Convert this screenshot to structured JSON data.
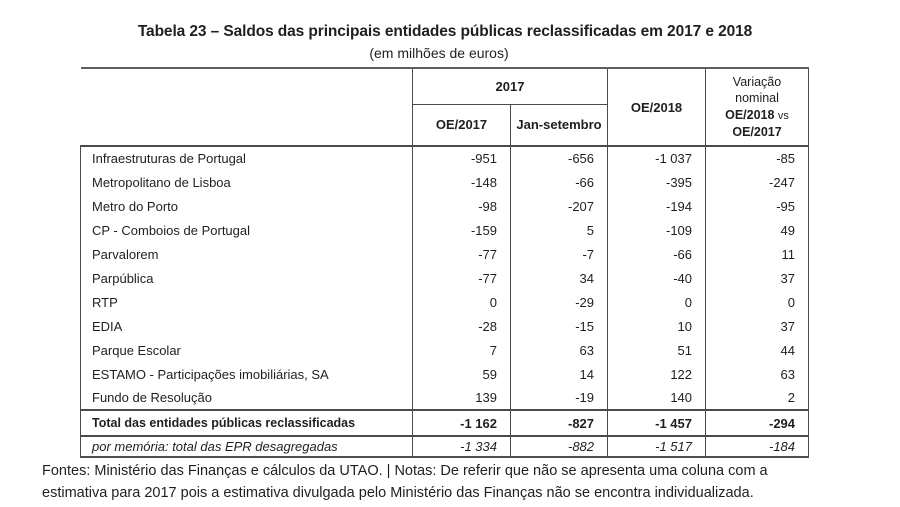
{
  "title": "Tabela 23 – Saldos das principais entidades públicas reclassificadas em 2017 e 2018",
  "subtitle": "(em milhões de euros)",
  "table": {
    "header": {
      "group_2017": "2017",
      "col_oe2017": "OE/2017",
      "col_jan_set": "Jan-setembro",
      "col_oe2018": "OE/2018",
      "variacao_line1": "Variação",
      "variacao_line2": "nominal",
      "variacao_line3_bold": "OE/2018",
      "variacao_line3_suffix": "vs",
      "variacao_line4": "OE/2017"
    },
    "rows": [
      {
        "name": "Infraestruturas de Portugal",
        "oe2017": "-951",
        "jan_set": "-656",
        "oe2018": "-1 037",
        "variacao": "-85"
      },
      {
        "name": "Metropolitano de Lisboa",
        "oe2017": "-148",
        "jan_set": "-66",
        "oe2018": "-395",
        "variacao": "-247"
      },
      {
        "name": "Metro do Porto",
        "oe2017": "-98",
        "jan_set": "-207",
        "oe2018": "-194",
        "variacao": "-95"
      },
      {
        "name": "CP - Comboios de Portugal",
        "oe2017": "-159",
        "jan_set": "5",
        "oe2018": "-109",
        "variacao": "49"
      },
      {
        "name": "Parvalorem",
        "oe2017": "-77",
        "jan_set": "-7",
        "oe2018": "-66",
        "variacao": "11"
      },
      {
        "name": "Parpública",
        "oe2017": "-77",
        "jan_set": "34",
        "oe2018": "-40",
        "variacao": "37"
      },
      {
        "name": "RTP",
        "oe2017": "0",
        "jan_set": "-29",
        "oe2018": "0",
        "variacao": "0"
      },
      {
        "name": "EDIA",
        "oe2017": "-28",
        "jan_set": "-15",
        "oe2018": "10",
        "variacao": "37"
      },
      {
        "name": "Parque Escolar",
        "oe2017": "7",
        "jan_set": "63",
        "oe2018": "51",
        "variacao": "44"
      },
      {
        "name": "ESTAMO - Participações imobiliárias, SA",
        "oe2017": "59",
        "jan_set": "14",
        "oe2018": "122",
        "variacao": "63"
      },
      {
        "name": "Fundo de Resolução",
        "oe2017": "139",
        "jan_set": "-19",
        "oe2018": "140",
        "variacao": "2"
      }
    ],
    "total_row": {
      "name": "Total das entidades públicas reclassificadas",
      "oe2017": "-1 162",
      "jan_set": "-827",
      "oe2018": "-1 457",
      "variacao": "-294"
    },
    "memo_row": {
      "name": "por memória: total das EPR desagregadas",
      "oe2017": "-1 334",
      "jan_set": "-882",
      "oe2018": "-1 517",
      "variacao": "-184"
    }
  },
  "footer": {
    "line1": "Fontes: Ministério das Finanças e cálculos da UTAO. | Notas: De referir que não se apresenta uma coluna com a",
    "line2": "estimativa para 2017 pois a estimativa divulgada pelo Ministério das Finanças não se encontra individualizada."
  },
  "colors": {
    "text": "#1f1f1f",
    "border": "#4a4a4a",
    "top_border": "#5e5e5e"
  }
}
